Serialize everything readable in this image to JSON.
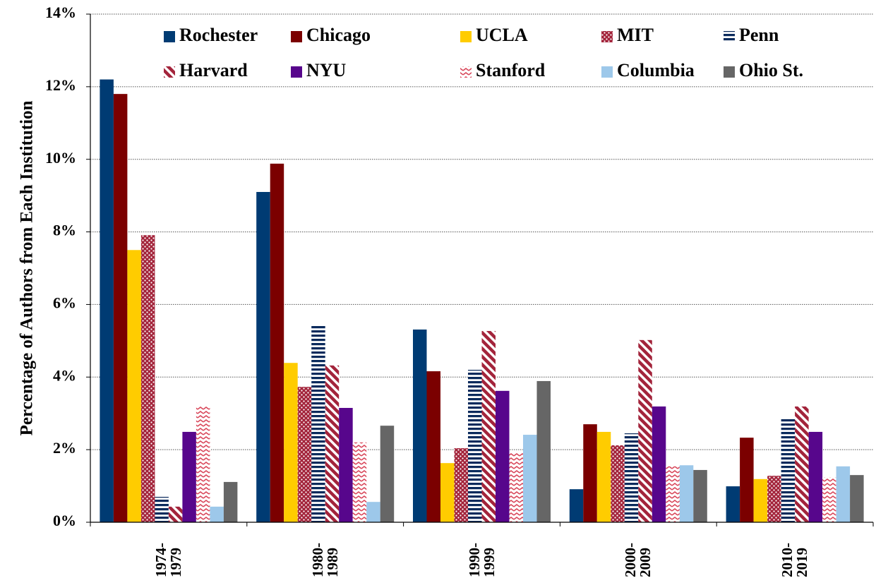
{
  "chart_data": {
    "type": "bar",
    "y_label": "Percentage of Authors from Each Institution",
    "categories": [
      "1974- 1979",
      "1980- 1989",
      "1990- 1999",
      "2000- 2009",
      "2010- 2019"
    ],
    "series": [
      {
        "name": "Rochester",
        "color": "#003b73",
        "values": [
          12.2,
          9.1,
          5.31,
          0.91,
          0.99
        ]
      },
      {
        "name": "Chicago",
        "color": "#7b0000",
        "values": [
          11.8,
          9.88,
          4.16,
          2.7,
          2.33
        ]
      },
      {
        "name": "UCLA",
        "color": "#ffcc00",
        "values": [
          7.5,
          4.39,
          1.63,
          2.49,
          1.19
        ]
      },
      {
        "name": "MIT",
        "color": "#a3243b",
        "pattern": "dots",
        "values": [
          7.91,
          3.73,
          2.04,
          2.12,
          1.28
        ]
      },
      {
        "name": "Penn",
        "color": "#0a2a5c",
        "pattern": "hstripes",
        "values": [
          0.7,
          5.44,
          4.2,
          2.45,
          2.86
        ]
      },
      {
        "name": "Harvard",
        "color": "#a3243b",
        "pattern": "diagonal",
        "values": [
          0.43,
          4.32,
          5.27,
          5.02,
          3.19
        ]
      },
      {
        "name": "NYU",
        "color": "#57068c",
        "values": [
          2.49,
          3.15,
          3.62,
          3.19,
          2.49
        ]
      },
      {
        "name": "Stanford",
        "color": "#d9475a",
        "pattern": "zigzag",
        "values": [
          3.19,
          2.2,
          1.92,
          1.54,
          1.24
        ]
      },
      {
        "name": "Columbia",
        "color": "#9dc8ea",
        "values": [
          0.43,
          0.56,
          2.41,
          1.57,
          1.54
        ]
      },
      {
        "name": "Ohio St.",
        "color": "#666666",
        "values": [
          1.11,
          2.66,
          3.89,
          1.44,
          1.3
        ]
      }
    ],
    "ylim": [
      0,
      14
    ],
    "yticks": [
      {
        "value": 0,
        "label": "0%"
      },
      {
        "value": 2,
        "label": "2%"
      },
      {
        "value": 4,
        "label": "4%"
      },
      {
        "value": 6,
        "label": "6%"
      },
      {
        "value": 8,
        "label": "8%"
      },
      {
        "value": 10,
        "label": "10%"
      },
      {
        "value": 12,
        "label": "12%"
      },
      {
        "value": 14,
        "label": "14%"
      }
    ],
    "grid": true,
    "legend_columns": 5
  }
}
